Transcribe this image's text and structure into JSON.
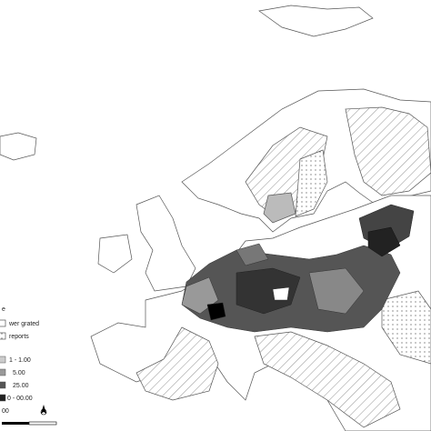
{
  "legend": {
    "items": [
      "e",
      "wer grated",
      "reports",
      "1 - 1.00",
      "5.00",
      "25.00",
      "0 - 00.00",
      "00"
    ]
  }
}
